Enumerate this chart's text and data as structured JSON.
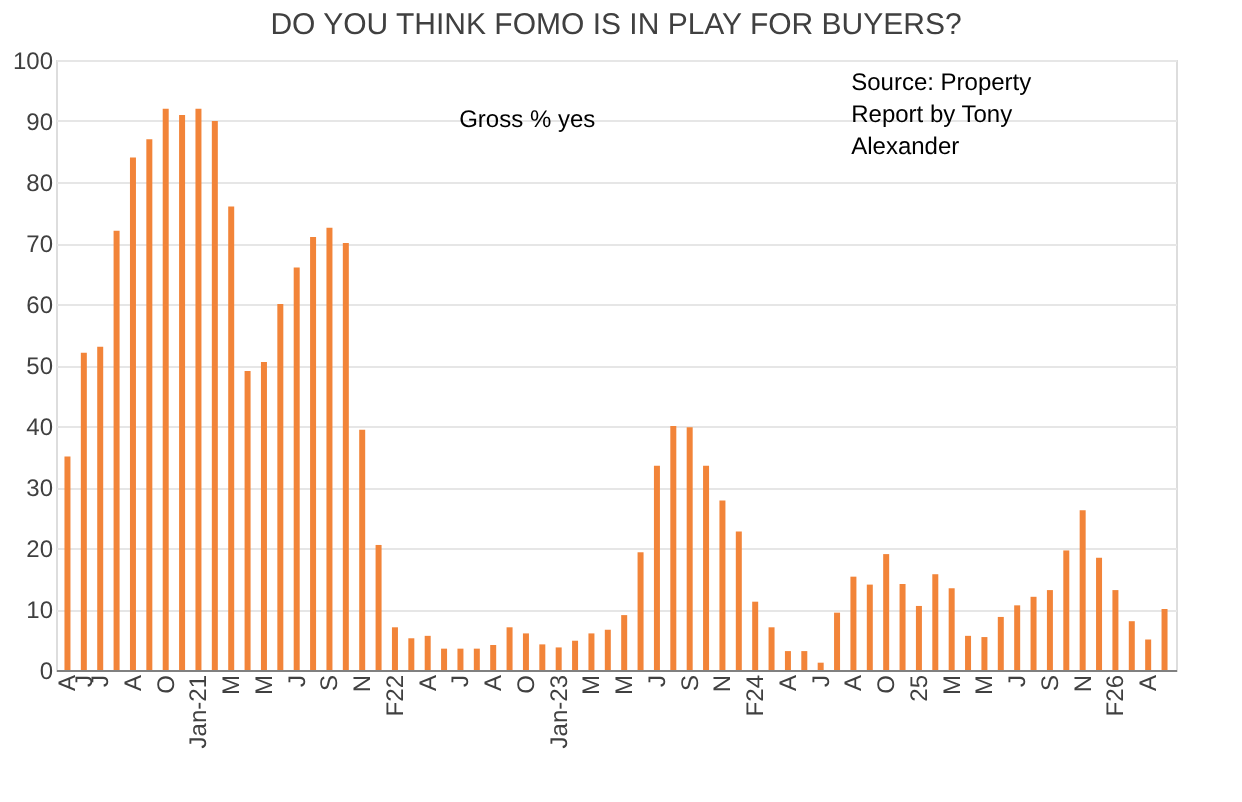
{
  "chart_data": {
    "type": "bar",
    "title": "DO YOU THINK FOMO IS IN PLAY FOR BUYERS?",
    "categories": [
      "A",
      "J",
      "J",
      null,
      "A",
      null,
      "O",
      null,
      "Jan-21",
      null,
      "M",
      null,
      "M",
      null,
      "J",
      null,
      "S",
      null,
      "N",
      null,
      "F22",
      null,
      "A",
      null,
      "J",
      null,
      "A",
      null,
      "O",
      null,
      "Jan-23",
      null,
      "M",
      null,
      "M",
      null,
      "J",
      null,
      "S",
      null,
      "N",
      null,
      "F24",
      null,
      "A",
      null,
      "J",
      null,
      "A",
      null,
      "O",
      null,
      "25",
      null,
      "M",
      null,
      "M",
      null,
      "J",
      null,
      "S",
      null,
      "N",
      null,
      "F26",
      null,
      "A",
      null
    ],
    "values": [
      35,
      52,
      53,
      72,
      84,
      87,
      92,
      91,
      92,
      90,
      76,
      49,
      50.5,
      60,
      66,
      71,
      72.5,
      70,
      39.4,
      20.5,
      7,
      5.2,
      5.6,
      3.5,
      3.5,
      3.5,
      4.1,
      7,
      6,
      4.2,
      3.7,
      4.8,
      6,
      6.6,
      9,
      19.3,
      33.5,
      40,
      39.8,
      33.5,
      27.8,
      22.7,
      11.2,
      7,
      3.1,
      3.1,
      1.2,
      9.4,
      15.3,
      14,
      19,
      14.1,
      10.5,
      15.7,
      13.4,
      5.6,
      5.4,
      8.7,
      10.6,
      12,
      13.1,
      19.6,
      26.2,
      18.4,
      13.1,
      8,
      5,
      10
    ],
    "color": "#f28439",
    "ylim": [
      0,
      100
    ],
    "yticks": [
      0,
      10,
      20,
      30,
      40,
      50,
      60,
      70,
      80,
      90,
      100
    ],
    "grid": "y",
    "annotations": [
      "Gross % yes",
      "Source: Property Report by Tony Alexander"
    ]
  }
}
